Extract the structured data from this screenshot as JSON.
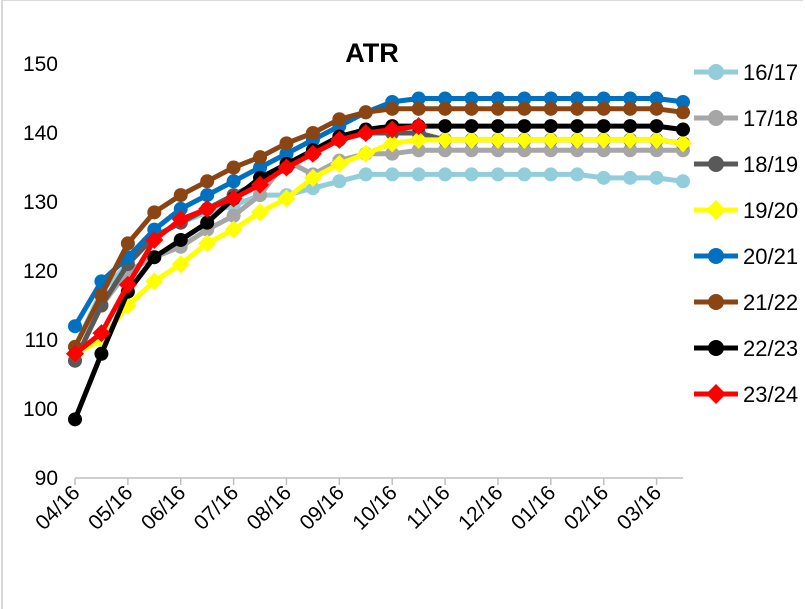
{
  "chart_data": {
    "type": "line",
    "title": "ATR",
    "xlabel": "",
    "ylabel": "",
    "ylim": [
      90,
      150
    ],
    "yticks": [
      "90",
      "100",
      "110",
      "120",
      "130",
      "140",
      "150"
    ],
    "grid": false,
    "legend_position": "right",
    "x_tick_labels": [
      "04/16",
      "05/16",
      "06/16",
      "07/16",
      "08/16",
      "09/16",
      "10/16",
      "11/16",
      "12/16",
      "01/16",
      "02/16",
      "03/16"
    ],
    "x": [
      "04/16",
      "04/30",
      "05/16",
      "05/30",
      "06/16",
      "06/30",
      "07/16",
      "07/30",
      "08/16",
      "08/30",
      "09/16",
      "09/30",
      "10/16",
      "10/30",
      "11/16",
      "11/30",
      "12/16",
      "12/30",
      "01/16",
      "01/30",
      "02/16",
      "02/28",
      "03/16",
      "03/30"
    ],
    "series": [
      {
        "name": "16/17",
        "color": "#92cddc",
        "marker": "circle",
        "values": [
          109,
          117,
          121,
          125,
          127,
          128.5,
          129.5,
          131,
          131,
          132,
          133,
          134,
          134,
          134,
          134,
          134,
          134,
          134,
          134,
          134,
          133.5,
          133.5,
          133.5,
          133
        ]
      },
      {
        "name": "17/18",
        "color": "#a6a6a6",
        "marker": "circle",
        "values": [
          107,
          115,
          120,
          122,
          123.5,
          126,
          128,
          131,
          136,
          134,
          136,
          137,
          137,
          137.5,
          137.5,
          137.5,
          137.5,
          137.5,
          137.5,
          137.5,
          137.5,
          137.5,
          137.5,
          137.5
        ]
      },
      {
        "name": "18/19",
        "color": "#595959",
        "marker": "circle",
        "values": [
          107,
          115,
          121,
          125,
          127,
          129,
          131,
          133,
          135,
          137,
          139,
          140,
          140,
          140,
          139,
          139,
          139,
          139,
          139,
          139,
          139,
          139,
          139,
          138.5
        ]
      },
      {
        "name": "19/20",
        "color": "#ffff00",
        "marker": "diamond",
        "values": [
          108,
          110,
          115,
          118.5,
          121,
          124,
          126,
          128.5,
          130.5,
          133.5,
          135.5,
          137,
          138.5,
          139,
          139,
          139,
          139,
          139,
          139,
          139,
          139,
          139,
          139,
          138.5
        ]
      },
      {
        "name": "20/21",
        "color": "#0070c0",
        "marker": "circle",
        "values": [
          112,
          118.5,
          122,
          126,
          129,
          131,
          133,
          135,
          137,
          139,
          141,
          143,
          144.5,
          145,
          145,
          145,
          145,
          145,
          145,
          145,
          145,
          145,
          145,
          144.5
        ]
      },
      {
        "name": "21/22",
        "color": "#8b4513",
        "marker": "circle",
        "values": [
          109,
          116.5,
          124,
          128.5,
          131,
          133,
          135,
          136.5,
          138.5,
          140,
          142,
          143,
          143.5,
          143.5,
          143.5,
          143.5,
          143.5,
          143.5,
          143.5,
          143.5,
          143.5,
          143.5,
          143.5,
          143
        ]
      },
      {
        "name": "22/23",
        "color": "#000000",
        "marker": "circle",
        "values": [
          98.5,
          108,
          117,
          122,
          124.5,
          127,
          130.5,
          133.5,
          135.5,
          137.5,
          139.5,
          140.5,
          141,
          141,
          141,
          141,
          141,
          141,
          141,
          141,
          141,
          141,
          141,
          140.5
        ]
      },
      {
        "name": "23/24",
        "color": "#ff0000",
        "marker": "diamond",
        "values": [
          108,
          111,
          118,
          124.5,
          127.5,
          129,
          130.5,
          132.5,
          135,
          137,
          139,
          140,
          140.5,
          141,
          null,
          null,
          null,
          null,
          null,
          null,
          null,
          null,
          null,
          null
        ]
      }
    ]
  }
}
